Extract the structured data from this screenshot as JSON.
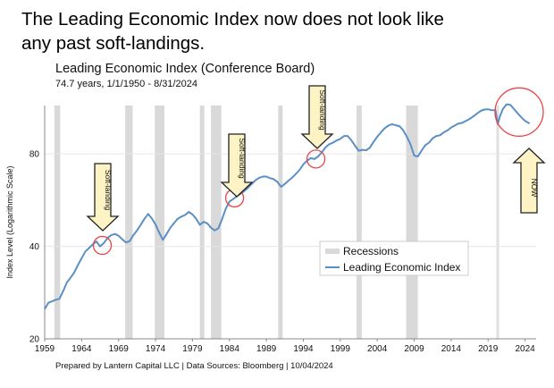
{
  "headline": {
    "line1": "The Leading Economic Index now does not look like",
    "line2": "any past soft-landings."
  },
  "chart_title": "Leading Economic Index (Conference Board)",
  "chart_subtitle": "74.7 years, 1/1/1950 - 8/31/2024",
  "footer": "Prepared by Lantern Capital LLC | Data Sources: Bloomberg | 10/04/2024",
  "colors": {
    "line": "#5b8fc4",
    "recession": "#d9d9d9",
    "highlight_circle": "#e84545",
    "arrow_fill": "#fdf3c4",
    "arrow_stroke": "#222222"
  },
  "chart_data": {
    "type": "line",
    "y_scale": "log",
    "ylabel": "Index Level (Logarithmic Scale)",
    "xlim": [
      1959,
      2025.5
    ],
    "ylim": [
      20,
      115
    ],
    "x_ticks": [
      "1959",
      "1964",
      "1969",
      "1974",
      "1979",
      "1984",
      "1989",
      "1994",
      "1999",
      "2004",
      "2009",
      "2014",
      "2019",
      "2024"
    ],
    "y_ticks": [
      "20",
      "40",
      "80"
    ],
    "grid": "horizontal",
    "legend_position": "center-right",
    "legend": {
      "recessions": "Recessions",
      "series": "Leading Economic Index"
    },
    "recessions": [
      [
        1960.3,
        1961.1
      ],
      [
        1969.9,
        1970.9
      ],
      [
        1973.9,
        1975.2
      ],
      [
        1980.0,
        1980.6
      ],
      [
        1981.5,
        1982.9
      ],
      [
        1990.6,
        1991.2
      ],
      [
        2001.2,
        2001.9
      ],
      [
        2007.9,
        2009.5
      ],
      [
        2020.1,
        2020.4
      ]
    ],
    "series": [
      {
        "name": "Leading Economic Index",
        "x": [
          1959,
          1959.5,
          1960,
          1960.5,
          1961,
          1961.5,
          1962,
          1962.5,
          1963,
          1963.5,
          1964,
          1964.5,
          1965,
          1965.5,
          1966,
          1966.5,
          1967,
          1967.5,
          1968,
          1968.5,
          1969,
          1969.5,
          1970,
          1970.5,
          1971,
          1971.5,
          1972,
          1972.5,
          1973,
          1973.5,
          1974,
          1974.5,
          1975,
          1975.5,
          1976,
          1976.5,
          1977,
          1977.5,
          1978,
          1978.5,
          1979,
          1979.5,
          1980,
          1980.5,
          1981,
          1981.5,
          1982,
          1982.5,
          1983,
          1983.5,
          1984,
          1984.5,
          1985,
          1985.5,
          1986,
          1986.5,
          1987,
          1987.5,
          1988,
          1988.5,
          1989,
          1989.5,
          1990,
          1990.5,
          1991,
          1991.5,
          1992,
          1992.5,
          1993,
          1993.5,
          1994,
          1994.5,
          1995,
          1995.5,
          1996,
          1996.5,
          1997,
          1997.5,
          1998,
          1998.5,
          1999,
          1999.5,
          2000,
          2000.5,
          2001,
          2001.5,
          2002,
          2002.5,
          2003,
          2003.5,
          2004,
          2004.5,
          2005,
          2005.5,
          2006,
          2006.5,
          2007,
          2007.5,
          2008,
          2008.5,
          2009,
          2009.5,
          2010,
          2010.5,
          2011,
          2011.5,
          2012,
          2012.5,
          2013,
          2013.5,
          2014,
          2014.5,
          2015,
          2015.5,
          2016,
          2016.5,
          2017,
          2017.5,
          2018,
          2018.5,
          2019,
          2019.5,
          2020,
          2020.3,
          2020.6,
          2021,
          2021.5,
          2022,
          2022.5,
          2023,
          2023.5,
          2024,
          2024.6
        ],
        "values": [
          25.0,
          26.2,
          26.5,
          26.8,
          27.0,
          28.6,
          30.5,
          31.6,
          32.9,
          34.8,
          36.6,
          38.5,
          39.5,
          40.6,
          41.5,
          40.0,
          41.0,
          42.6,
          43.5,
          43.9,
          43.3,
          42.2,
          41.2,
          41.6,
          43.5,
          45.1,
          47.0,
          49.2,
          51.0,
          49.3,
          47.1,
          44.3,
          42.0,
          43.9,
          46.0,
          47.6,
          49.2,
          50.0,
          50.6,
          51.8,
          50.8,
          49.2,
          47.0,
          48.1,
          47.5,
          46.0,
          45.1,
          45.8,
          49.0,
          53.0,
          56.0,
          57.0,
          58.2,
          59.3,
          60.5,
          62.0,
          63.8,
          65.6,
          66.8,
          67.5,
          67.5,
          66.7,
          66.2,
          64.8,
          62.5,
          63.9,
          65.5,
          67.0,
          68.9,
          71.0,
          74.0,
          76.0,
          77.5,
          77.0,
          78.5,
          81.0,
          84.0,
          86.0,
          87.0,
          88.5,
          89.5,
          91.5,
          91.5,
          88.6,
          85.0,
          81.9,
          82.5,
          82.2,
          83.8,
          87.5,
          91.0,
          94.0,
          97.0,
          98.9,
          100.0,
          99.2,
          98.5,
          95.6,
          91.0,
          85.9,
          79.0,
          78.5,
          82.0,
          85.4,
          87.0,
          89.9,
          91.5,
          92.0,
          94.0,
          95.4,
          97.5,
          99.0,
          100.5,
          101.0,
          102.5,
          104.0,
          106.0,
          108.2,
          110.5,
          111.6,
          111.8,
          111.0,
          111.0,
          100.0,
          106.0,
          112.0,
          116.0,
          115.6,
          112.0,
          108.5,
          105.2,
          102.5,
          100.5
        ]
      }
    ],
    "annotations": {
      "soft_landing_label": "Soft-landing",
      "now_label": "NOW"
    }
  }
}
